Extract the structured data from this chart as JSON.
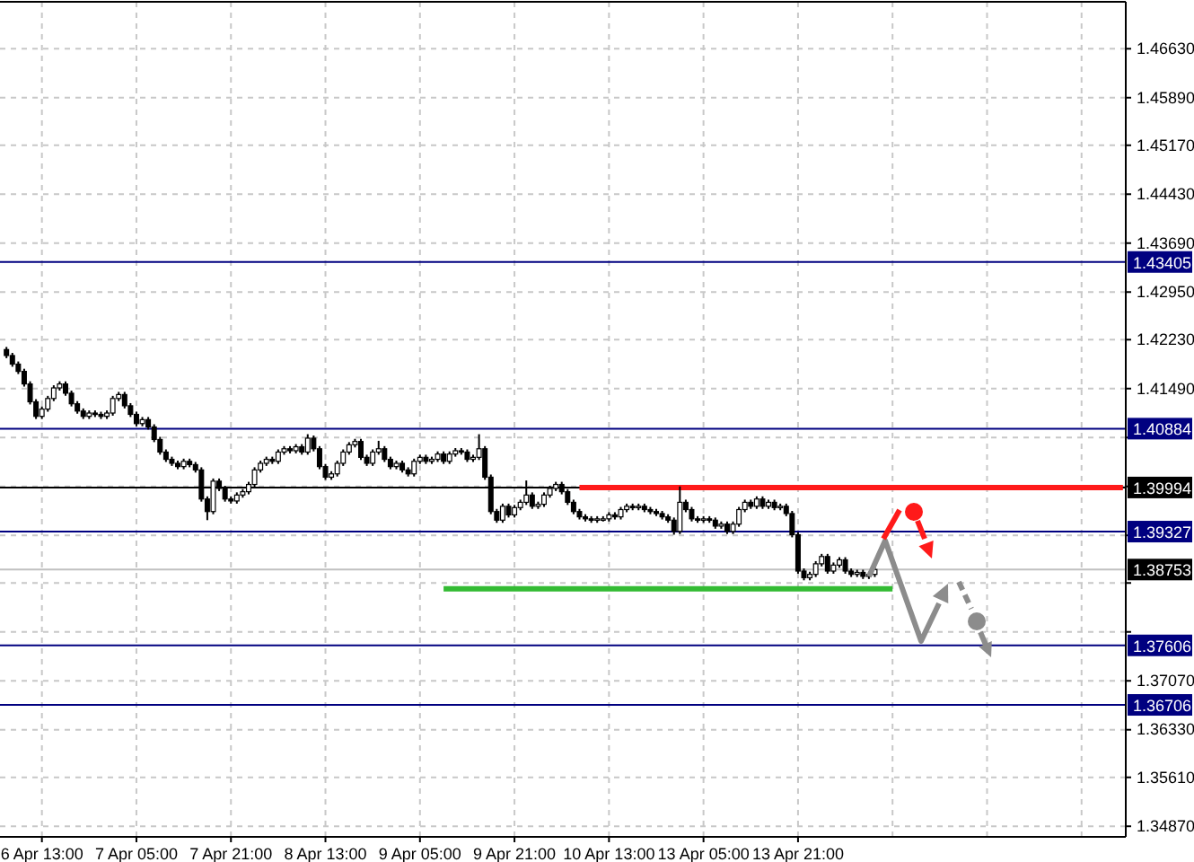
{
  "chart_data": {
    "type": "candlestick",
    "color": "#000000",
    "grid": true,
    "categories": [
      null,
      null,
      null,
      null,
      null,
      null,
      "6 Apr 13:00",
      null,
      null,
      null,
      null,
      null,
      null,
      null,
      null,
      null,
      null,
      null,
      null,
      null,
      null,
      null,
      "7 Apr 05:00",
      null,
      null,
      null,
      null,
      null,
      null,
      null,
      null,
      null,
      null,
      null,
      null,
      null,
      null,
      null,
      "7 Apr 21:00",
      null,
      null,
      null,
      null,
      null,
      null,
      null,
      null,
      null,
      null,
      null,
      null,
      null,
      null,
      null,
      "8 Apr 13:00",
      null,
      null,
      null,
      null,
      null,
      null,
      null,
      null,
      null,
      null,
      null,
      null,
      null,
      null,
      null,
      "9 Apr 05:00",
      null,
      null,
      null,
      null,
      null,
      null,
      null,
      null,
      null,
      null,
      null,
      null,
      null,
      null,
      null,
      "9 Apr 21:00",
      null,
      null,
      null,
      null,
      null,
      null,
      null,
      null,
      null,
      null,
      null,
      null,
      null,
      null,
      null,
      "10 Apr 13:00",
      null,
      null,
      null,
      null,
      null,
      null,
      null,
      null,
      null,
      null,
      null,
      null,
      null,
      null,
      null,
      "13 Apr 05:00",
      null,
      null,
      null,
      null,
      null,
      null,
      null,
      null,
      null,
      null,
      null,
      null,
      null,
      null,
      null,
      "13 Apr 21:00",
      null,
      null,
      null,
      null,
      null,
      null,
      null,
      null,
      null,
      null,
      null,
      null,
      null,
      null,
      null,
      null,
      null,
      null,
      null,
      null,
      null,
      null,
      null,
      null,
      null,
      null,
      null,
      null,
      null,
      null,
      null,
      null,
      null,
      null,
      null,
      null,
      null,
      null,
      null,
      null,
      null,
      null,
      null,
      null,
      null,
      null,
      null,
      null,
      null,
      null,
      null,
      null,
      null,
      null,
      null
    ],
    "ylim": [
      1.3471,
      1.4734
    ],
    "yticks": [
      {
        "value": 1.4663,
        "label": "1.46630"
      },
      {
        "value": 1.4589,
        "label": "1.45890"
      },
      {
        "value": 1.4517,
        "label": "1.45170"
      },
      {
        "value": 1.4443,
        "label": "1.44430"
      },
      {
        "value": 1.4369,
        "label": "1.43690"
      },
      {
        "value": 1.4295,
        "label": "1.42950"
      },
      {
        "value": 1.4223,
        "label": "1.42230"
      },
      {
        "value": 1.4149,
        "label": "1.41490"
      },
      {
        "value": 1.4075,
        "label": null
      },
      {
        "value": 1.4001,
        "label": null
      },
      {
        "value": 1.3927,
        "label": null
      },
      {
        "value": 1.3855,
        "label": null
      },
      {
        "value": 1.3781,
        "label": null
      },
      {
        "value": 1.3707,
        "label": "1.37070"
      },
      {
        "value": 1.3633,
        "label": "1.36330"
      },
      {
        "value": 1.3561,
        "label": "1.35610"
      },
      {
        "value": 1.3487,
        "label": "1.34870"
      }
    ],
    "ref_lines": [
      {
        "axis": "y",
        "value": 1.43405,
        "label": "1.43405",
        "color": "#000080"
      },
      {
        "axis": "y",
        "value": 1.40884,
        "label": "1.40884",
        "color": "#000080"
      },
      {
        "axis": "y",
        "value": 1.39994,
        "label": "1.39994",
        "color": "#000000"
      },
      {
        "axis": "y",
        "value": 1.39327,
        "label": "1.39327",
        "color": "#000080"
      },
      {
        "axis": "y",
        "value": 1.38753,
        "label": "1.38753",
        "color": "#c0c0c0"
      },
      {
        "axis": "y",
        "value": 1.37606,
        "label": "1.37606",
        "color": "#000080"
      },
      {
        "axis": "y",
        "value": 1.36706,
        "label": "1.36706",
        "color": "#000080"
      }
    ],
    "series": [
      {
        "type": "line",
        "color": "#ff1a1a",
        "values": [
          null,
          null,
          null,
          null,
          null,
          null,
          null,
          null,
          null,
          null,
          null,
          null,
          null,
          null,
          null,
          null,
          null,
          null,
          null,
          null,
          null,
          null,
          null,
          null,
          null,
          null,
          null,
          null,
          null,
          null,
          null,
          null,
          null,
          null,
          null,
          null,
          null,
          null,
          null,
          null,
          null,
          null,
          null,
          null,
          null,
          null,
          null,
          null,
          null,
          null,
          null,
          null,
          null,
          null,
          null,
          null,
          null,
          null,
          null,
          null,
          null,
          null,
          null,
          null,
          null,
          null,
          null,
          null,
          null,
          null,
          null,
          null,
          null,
          null,
          null,
          null,
          null,
          null,
          null,
          null,
          null,
          null,
          null,
          null,
          null,
          null,
          null,
          null,
          null,
          null,
          null,
          null,
          null,
          null,
          null,
          null,
          null,
          1.39994,
          1.39994,
          1.39994,
          1.39994,
          1.39994,
          1.39994,
          1.39994,
          1.39994,
          1.39994,
          1.39994,
          1.39994,
          1.39994,
          1.39994,
          1.39994,
          1.39994,
          1.39994,
          1.39994,
          1.39994,
          1.39994,
          1.39994,
          1.39994,
          1.39994,
          1.39994,
          1.39994,
          1.39994,
          1.39994,
          1.39994,
          1.39994,
          1.39994,
          1.39994,
          1.39994,
          1.39994,
          1.39994,
          1.39994,
          1.39994,
          1.39994,
          1.39994,
          1.39994,
          1.39994,
          1.39994,
          1.39994,
          1.39994,
          1.39994,
          1.39994,
          1.39994,
          1.39994,
          1.39994,
          1.39994,
          1.39994,
          1.39994,
          1.39994,
          1.39994,
          1.39994,
          1.39994,
          1.39994,
          1.39994,
          1.39994,
          1.39994,
          1.39994,
          1.39994,
          1.39994,
          1.39994,
          1.39994,
          1.39994,
          1.39994,
          1.39994,
          1.39994,
          1.39994,
          1.39994,
          1.39994,
          1.39994,
          1.39994,
          1.39994,
          1.39994,
          1.39994,
          1.39994,
          1.39994,
          1.39994,
          1.39994,
          1.39994,
          1.39994,
          1.39994,
          1.39994,
          1.39994,
          1.39994,
          1.39994,
          1.39994,
          1.39994,
          1.39994,
          1.39994,
          1.39994,
          1.39994,
          1.39994
        ]
      },
      {
        "type": "line",
        "color": "#33bb33",
        "values": [
          null,
          null,
          null,
          null,
          null,
          null,
          null,
          null,
          null,
          null,
          null,
          null,
          null,
          null,
          null,
          null,
          null,
          null,
          null,
          null,
          null,
          null,
          null,
          null,
          null,
          null,
          null,
          null,
          null,
          null,
          null,
          null,
          null,
          null,
          null,
          null,
          null,
          null,
          null,
          null,
          null,
          null,
          null,
          null,
          null,
          null,
          null,
          null,
          null,
          null,
          null,
          null,
          null,
          null,
          null,
          null,
          null,
          null,
          null,
          null,
          null,
          null,
          null,
          null,
          null,
          null,
          null,
          null,
          null,
          null,
          null,
          null,
          null,
          null,
          1.3846,
          1.3846,
          1.3846,
          1.3846,
          1.3846,
          1.3846,
          1.3846,
          1.3846,
          1.3846,
          1.3846,
          1.3846,
          1.3846,
          1.3846,
          1.3846,
          1.3846,
          1.3846,
          1.3846,
          1.3846,
          1.3846,
          1.3846,
          1.3846,
          1.3846,
          1.3846,
          1.3846,
          1.3846,
          1.3846,
          1.3846,
          1.3846,
          1.3846,
          1.3846,
          1.3846,
          1.3846,
          1.3846,
          1.3846,
          1.3846,
          1.3846,
          1.3846,
          1.3846,
          1.3846,
          1.3846,
          1.3846,
          1.3846,
          1.3846,
          1.3846,
          1.3846,
          1.3846,
          1.3846,
          1.3846,
          1.3846,
          1.3846,
          1.3846,
          1.3846,
          1.3846,
          1.3846,
          1.3846,
          1.3846,
          1.3846,
          1.3846,
          1.3846,
          1.3846,
          1.3846,
          1.3846,
          1.3846,
          1.3846,
          1.3846,
          1.3846,
          1.3846,
          1.3846,
          1.3846,
          1.3846,
          1.3846,
          1.3846,
          1.3846,
          1.3846,
          1.3846,
          1.3846,
          1.3846,
          null,
          null,
          null,
          null,
          null,
          null,
          null,
          null,
          null,
          null,
          null,
          null,
          null,
          null,
          null,
          null,
          null,
          null,
          null,
          null,
          null,
          null,
          null,
          null,
          null,
          null,
          null,
          null,
          null,
          null,
          null,
          null,
          null,
          null,
          null,
          null,
          null,
          null,
          null
        ]
      }
    ],
    "ohlc": [
      [
        1.4208,
        1.4212,
        1.4195,
        1.4199
      ],
      [
        1.4199,
        1.4203,
        1.4182,
        1.4186
      ],
      [
        1.4186,
        1.419,
        1.4171,
        1.4175
      ],
      [
        1.4175,
        1.4179,
        1.4152,
        1.4156
      ],
      [
        1.4156,
        1.416,
        1.4125,
        1.4129
      ],
      [
        1.4129,
        1.4133,
        1.4103,
        1.4107
      ],
      [
        1.4107,
        1.4122,
        1.4103,
        1.4118
      ],
      [
        1.4118,
        1.4138,
        1.4114,
        1.4134
      ],
      [
        1.4134,
        1.4154,
        1.413,
        1.415
      ],
      [
        1.415,
        1.416,
        1.4146,
        1.4156
      ],
      [
        1.4156,
        1.416,
        1.4138,
        1.4142
      ],
      [
        1.4142,
        1.4146,
        1.4122,
        1.4126
      ],
      [
        1.4126,
        1.413,
        1.4111,
        1.4115
      ],
      [
        1.4115,
        1.4119,
        1.4103,
        1.4107
      ],
      [
        1.4107,
        1.4116,
        1.4103,
        1.4112
      ],
      [
        1.4112,
        1.4116,
        1.4106,
        1.411
      ],
      [
        1.411,
        1.4114,
        1.4103,
        1.4107
      ],
      [
        1.4107,
        1.4116,
        1.4103,
        1.4112
      ],
      [
        1.4112,
        1.4138,
        1.4108,
        1.4134
      ],
      [
        1.4134,
        1.4144,
        1.413,
        1.414
      ],
      [
        1.414,
        1.4144,
        1.4119,
        1.4123
      ],
      [
        1.4123,
        1.4127,
        1.4106,
        1.411
      ],
      [
        1.411,
        1.4114,
        1.4092,
        1.4096
      ],
      [
        1.4096,
        1.4106,
        1.4092,
        1.4102
      ],
      [
        1.4102,
        1.4106,
        1.4087,
        1.4091
      ],
      [
        1.4091,
        1.4095,
        1.4068,
        1.4072
      ],
      [
        1.4072,
        1.4076,
        1.4049,
        1.4053
      ],
      [
        1.4053,
        1.4057,
        1.4038,
        1.4042
      ],
      [
        1.4042,
        1.4046,
        1.4032,
        1.4036
      ],
      [
        1.4036,
        1.404,
        1.4027,
        1.4031
      ],
      [
        1.4031,
        1.4043,
        1.4027,
        1.4039
      ],
      [
        1.4039,
        1.4043,
        1.403,
        1.4034
      ],
      [
        1.4034,
        1.4038,
        1.4022,
        1.4026
      ],
      [
        1.4026,
        1.403,
        1.3978,
        1.3982
      ],
      [
        1.3982,
        1.3986,
        1.395,
        1.3963
      ],
      [
        1.3963,
        1.4013,
        1.3959,
        1.4009
      ],
      [
        1.4009,
        1.4013,
        1.3994,
        1.3998
      ],
      [
        1.3998,
        1.4002,
        1.3978,
        1.3982
      ],
      [
        1.3982,
        1.3986,
        1.3975,
        1.3979
      ],
      [
        1.3979,
        1.3992,
        1.3975,
        1.3988
      ],
      [
        1.3988,
        1.3997,
        1.3984,
        1.3993
      ],
      [
        1.3993,
        1.4008,
        1.3989,
        1.4004
      ],
      [
        1.4004,
        1.403,
        1.4,
        1.4026
      ],
      [
        1.4026,
        1.404,
        1.4022,
        1.4036
      ],
      [
        1.4036,
        1.4046,
        1.4032,
        1.4042
      ],
      [
        1.4042,
        1.4046,
        1.4035,
        1.4039
      ],
      [
        1.4039,
        1.4057,
        1.4035,
        1.4053
      ],
      [
        1.4053,
        1.4062,
        1.4049,
        1.4058
      ],
      [
        1.4058,
        1.4062,
        1.4051,
        1.4055
      ],
      [
        1.4055,
        1.4065,
        1.4051,
        1.4061
      ],
      [
        1.4061,
        1.4065,
        1.4049,
        1.4053
      ],
      [
        1.4053,
        1.408,
        1.4049,
        1.4074
      ],
      [
        1.4074,
        1.4078,
        1.4054,
        1.4058
      ],
      [
        1.4058,
        1.4062,
        1.4027,
        1.4031
      ],
      [
        1.4031,
        1.4035,
        1.4011,
        1.4015
      ],
      [
        1.4015,
        1.4024,
        1.4011,
        1.402
      ],
      [
        1.402,
        1.404,
        1.4016,
        1.4036
      ],
      [
        1.4036,
        1.4057,
        1.4032,
        1.4053
      ],
      [
        1.4053,
        1.4068,
        1.4049,
        1.4064
      ],
      [
        1.4064,
        1.4073,
        1.406,
        1.4069
      ],
      [
        1.4069,
        1.4073,
        1.4041,
        1.4045
      ],
      [
        1.4045,
        1.4049,
        1.4032,
        1.4036
      ],
      [
        1.4036,
        1.4057,
        1.4032,
        1.4053
      ],
      [
        1.4053,
        1.407,
        1.4049,
        1.4058
      ],
      [
        1.4058,
        1.4062,
        1.4038,
        1.4042
      ],
      [
        1.4042,
        1.4046,
        1.4027,
        1.4031
      ],
      [
        1.4031,
        1.404,
        1.4027,
        1.4036
      ],
      [
        1.4036,
        1.404,
        1.4022,
        1.4026
      ],
      [
        1.4026,
        1.403,
        1.4016,
        1.402
      ],
      [
        1.402,
        1.4043,
        1.4016,
        1.4039
      ],
      [
        1.4039,
        1.4049,
        1.4035,
        1.4045
      ],
      [
        1.4045,
        1.4049,
        1.4035,
        1.4039
      ],
      [
        1.4039,
        1.4046,
        1.4035,
        1.4042
      ],
      [
        1.4042,
        1.4054,
        1.4038,
        1.405
      ],
      [
        1.405,
        1.4054,
        1.4035,
        1.4039
      ],
      [
        1.4039,
        1.4054,
        1.4035,
        1.405
      ],
      [
        1.405,
        1.4059,
        1.4046,
        1.4055
      ],
      [
        1.4055,
        1.4059,
        1.4049,
        1.4053
      ],
      [
        1.4053,
        1.4057,
        1.4038,
        1.4042
      ],
      [
        1.4042,
        1.4049,
        1.4038,
        1.4045
      ],
      [
        1.4045,
        1.408,
        1.4041,
        1.4058
      ],
      [
        1.4058,
        1.4062,
        1.4011,
        1.4015
      ],
      [
        1.4015,
        1.4019,
        1.3959,
        1.3963
      ],
      [
        1.3963,
        1.3967,
        1.3946,
        1.395
      ],
      [
        1.395,
        1.3975,
        1.3946,
        1.3971
      ],
      [
        1.3971,
        1.3975,
        1.3954,
        1.3958
      ],
      [
        1.3958,
        1.3973,
        1.3954,
        1.3969
      ],
      [
        1.3969,
        1.3981,
        1.3965,
        1.3977
      ],
      [
        1.3977,
        1.401,
        1.3973,
        1.3988
      ],
      [
        1.3988,
        1.3992,
        1.3967,
        1.3971
      ],
      [
        1.3971,
        1.3978,
        1.3967,
        1.3974
      ],
      [
        1.3974,
        1.3992,
        1.397,
        1.3988
      ],
      [
        1.3988,
        1.4002,
        1.3984,
        1.3998
      ],
      [
        1.3998,
        1.4008,
        1.3994,
        1.4004
      ],
      [
        1.4004,
        1.4008,
        1.3989,
        1.3993
      ],
      [
        1.3993,
        1.3997,
        1.3973,
        1.3977
      ],
      [
        1.3977,
        1.3981,
        1.3959,
        1.3963
      ],
      [
        1.3963,
        1.3967,
        1.3951,
        1.3955
      ],
      [
        1.3955,
        1.3959,
        1.3948,
        1.3952
      ],
      [
        1.3952,
        1.3956,
        1.3946,
        1.395
      ],
      [
        1.395,
        1.3956,
        1.3946,
        1.3952
      ],
      [
        1.3952,
        1.3956,
        1.3948,
        1.3952
      ],
      [
        1.3952,
        1.3962,
        1.3948,
        1.3958
      ],
      [
        1.3958,
        1.3962,
        1.3951,
        1.3955
      ],
      [
        1.3955,
        1.397,
        1.3951,
        1.3966
      ],
      [
        1.3966,
        1.3975,
        1.3962,
        1.3971
      ],
      [
        1.3971,
        1.3975,
        1.3965,
        1.3969
      ],
      [
        1.3969,
        1.3975,
        1.3965,
        1.3971
      ],
      [
        1.3971,
        1.3975,
        1.3962,
        1.3966
      ],
      [
        1.3966,
        1.397,
        1.3959,
        1.3963
      ],
      [
        1.3963,
        1.3967,
        1.3956,
        1.396
      ],
      [
        1.396,
        1.3964,
        1.3951,
        1.3955
      ],
      [
        1.3955,
        1.3959,
        1.3946,
        1.395
      ],
      [
        1.395,
        1.3954,
        1.3928,
        1.3933
      ],
      [
        1.3933,
        1.4001,
        1.3929,
        1.3977
      ],
      [
        1.3977,
        1.3981,
        1.3962,
        1.3966
      ],
      [
        1.3966,
        1.397,
        1.3948,
        1.3952
      ],
      [
        1.3952,
        1.3956,
        1.3946,
        1.395
      ],
      [
        1.395,
        1.3956,
        1.3946,
        1.3952
      ],
      [
        1.3952,
        1.3956,
        1.3946,
        1.395
      ],
      [
        1.395,
        1.3954,
        1.3937,
        1.3941
      ],
      [
        1.3941,
        1.3948,
        1.3937,
        1.3944
      ],
      [
        1.3944,
        1.3948,
        1.3929,
        1.3933
      ],
      [
        1.3933,
        1.3948,
        1.3929,
        1.3944
      ],
      [
        1.3944,
        1.397,
        1.394,
        1.3966
      ],
      [
        1.3966,
        1.3981,
        1.3962,
        1.3977
      ],
      [
        1.3977,
        1.3981,
        1.3967,
        1.3971
      ],
      [
        1.3971,
        1.3986,
        1.3967,
        1.3982
      ],
      [
        1.3982,
        1.3986,
        1.3967,
        1.3971
      ],
      [
        1.3971,
        1.3981,
        1.3967,
        1.3977
      ],
      [
        1.3977,
        1.3981,
        1.3965,
        1.3969
      ],
      [
        1.3969,
        1.3975,
        1.3965,
        1.3971
      ],
      [
        1.3971,
        1.3975,
        1.3956,
        1.396
      ],
      [
        1.396,
        1.3964,
        1.3924,
        1.3928
      ],
      [
        1.3928,
        1.3932,
        1.3869,
        1.3873
      ],
      [
        1.3873,
        1.3877,
        1.3859,
        1.3863
      ],
      [
        1.3863,
        1.3872,
        1.3859,
        1.3868
      ],
      [
        1.3868,
        1.3888,
        1.3864,
        1.3884
      ],
      [
        1.3884,
        1.3899,
        1.388,
        1.3895
      ],
      [
        1.3895,
        1.3899,
        1.3869,
        1.3873
      ],
      [
        1.3873,
        1.3886,
        1.3869,
        1.3882
      ],
      [
        1.3882,
        1.3894,
        1.3878,
        1.389
      ],
      [
        1.389,
        1.3894,
        1.3869,
        1.3873
      ],
      [
        1.3873,
        1.3877,
        1.3864,
        1.3868
      ],
      [
        1.3868,
        1.3875,
        1.3864,
        1.3871
      ],
      [
        1.3871,
        1.3875,
        1.3861,
        1.3865
      ],
      [
        1.3865,
        1.3872,
        1.3861,
        1.3868
      ],
      [
        1.3868,
        1.3879,
        1.3864,
        1.38753
      ],
      null,
      null,
      null,
      null,
      null,
      null,
      null,
      null,
      null,
      null,
      null,
      null,
      null,
      null,
      null,
      null,
      null,
      null,
      null,
      null,
      null,
      null,
      null,
      null,
      null,
      null,
      null,
      null,
      null,
      null,
      null,
      null,
      null,
      null,
      null,
      null,
      null,
      null,
      null,
      null,
      null,
      null
    ]
  }
}
